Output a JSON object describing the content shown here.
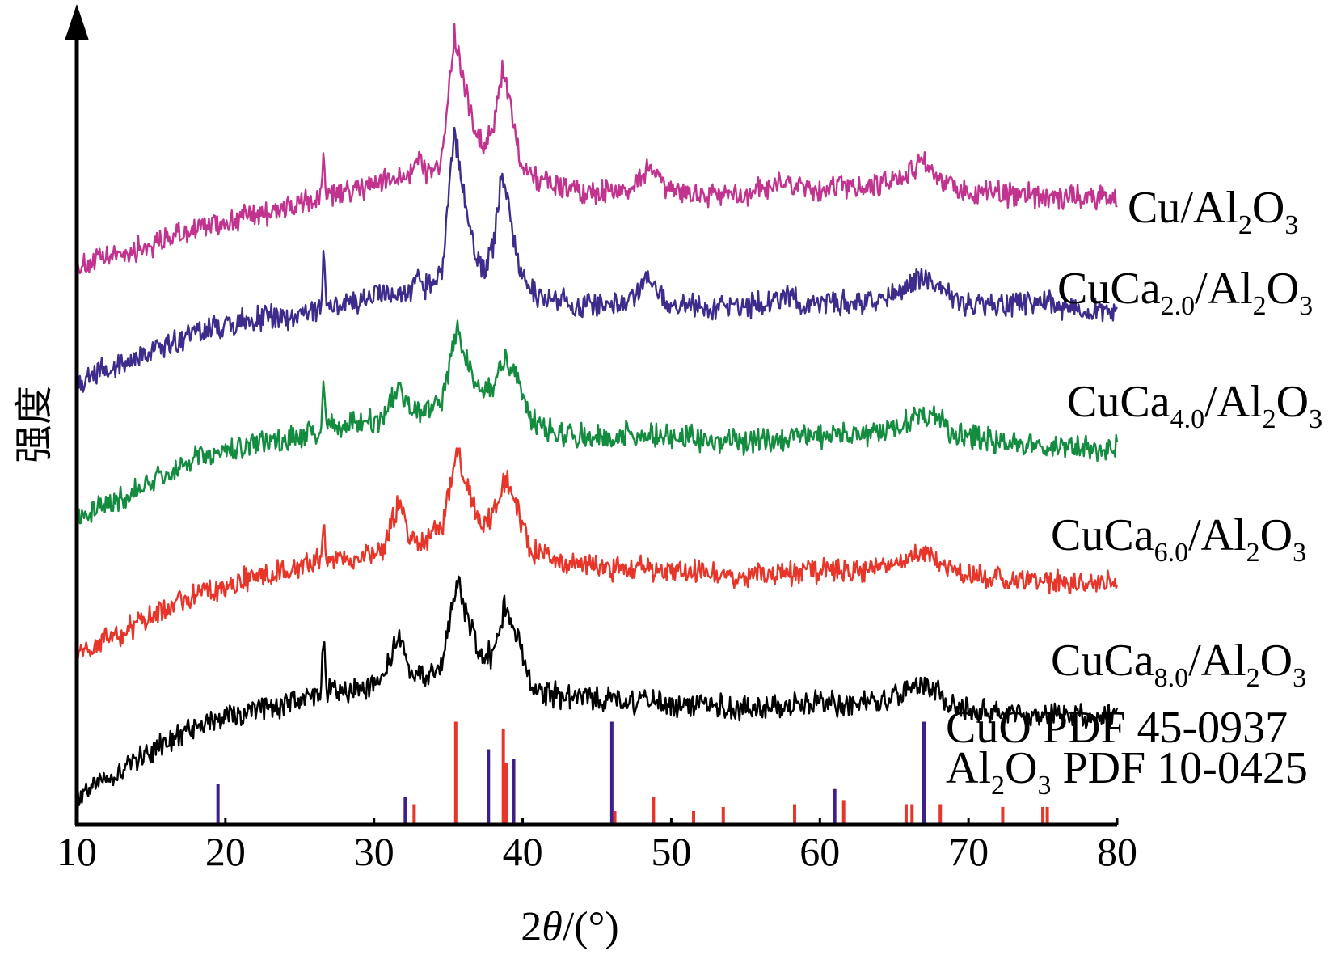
{
  "chart_data": {
    "type": "line",
    "title": "",
    "xlabel_parts": [
      "2",
      "θ",
      "/(°)"
    ],
    "ylabel": "强度",
    "xlim": [
      10,
      80
    ],
    "x_ticks": [
      10,
      20,
      30,
      40,
      50,
      60,
      70,
      80
    ],
    "series": [
      {
        "name": "Cu/Al2O3",
        "label_parts": [
          {
            "t": "Cu/Al"
          },
          {
            "t": "2",
            "sub": true
          },
          {
            "t": "O"
          },
          {
            "t": "3",
            "sub": true
          }
        ],
        "color": "#c1338e",
        "points": [
          [
            10,
            0.0
          ],
          [
            14,
            0.12
          ],
          [
            18,
            0.26
          ],
          [
            22,
            0.36
          ],
          [
            25,
            0.42
          ],
          [
            26.4,
            0.48
          ],
          [
            26.6,
            0.75
          ],
          [
            26.8,
            0.48
          ],
          [
            29,
            0.53
          ],
          [
            31,
            0.6
          ],
          [
            32.5,
            0.66
          ],
          [
            33,
            0.75
          ],
          [
            33.6,
            0.64
          ],
          [
            34.6,
            0.75
          ],
          [
            35.4,
            1.6
          ],
          [
            36,
            1.28
          ],
          [
            36.8,
            0.9
          ],
          [
            37.5,
            0.82
          ],
          [
            38.1,
            1.0
          ],
          [
            38.6,
            1.35
          ],
          [
            39.1,
            1.15
          ],
          [
            39.8,
            0.75
          ],
          [
            41,
            0.6
          ],
          [
            44,
            0.52
          ],
          [
            47,
            0.52
          ],
          [
            48.6,
            0.68
          ],
          [
            49.6,
            0.52
          ],
          [
            52,
            0.5
          ],
          [
            55,
            0.5
          ],
          [
            58,
            0.58
          ],
          [
            59,
            0.52
          ],
          [
            62,
            0.54
          ],
          [
            64,
            0.56
          ],
          [
            66,
            0.66
          ],
          [
            67,
            0.72
          ],
          [
            68,
            0.62
          ],
          [
            69,
            0.52
          ],
          [
            72,
            0.5
          ],
          [
            76,
            0.48
          ],
          [
            80,
            0.48
          ]
        ]
      },
      {
        "name": "CuCa2.0/Al2O3",
        "label_parts": [
          {
            "t": "CuCa"
          },
          {
            "t": "2.0",
            "sub": true
          },
          {
            "t": "/Al"
          },
          {
            "t": "2",
            "sub": true
          },
          {
            "t": "O"
          },
          {
            "t": "3",
            "sub": true
          }
        ],
        "color": "#3f2b8c",
        "points": [
          [
            10,
            0.0
          ],
          [
            14,
            0.15
          ],
          [
            18,
            0.33
          ],
          [
            22,
            0.42
          ],
          [
            25,
            0.45
          ],
          [
            26.4,
            0.48
          ],
          [
            26.6,
            0.85
          ],
          [
            26.8,
            0.5
          ],
          [
            29,
            0.55
          ],
          [
            31,
            0.6
          ],
          [
            32.5,
            0.62
          ],
          [
            33,
            0.75
          ],
          [
            33.6,
            0.62
          ],
          [
            34.6,
            0.75
          ],
          [
            35.4,
            1.72
          ],
          [
            36,
            1.3
          ],
          [
            36.8,
            0.85
          ],
          [
            37.5,
            0.75
          ],
          [
            38.1,
            0.95
          ],
          [
            38.6,
            1.45
          ],
          [
            39.1,
            1.2
          ],
          [
            39.8,
            0.72
          ],
          [
            41,
            0.58
          ],
          [
            44,
            0.52
          ],
          [
            47,
            0.52
          ],
          [
            48.6,
            0.72
          ],
          [
            49.6,
            0.52
          ],
          [
            52,
            0.5
          ],
          [
            55,
            0.5
          ],
          [
            58,
            0.58
          ],
          [
            59,
            0.52
          ],
          [
            62,
            0.53
          ],
          [
            64,
            0.56
          ],
          [
            66,
            0.66
          ],
          [
            67,
            0.7
          ],
          [
            68,
            0.62
          ],
          [
            69,
            0.54
          ],
          [
            72,
            0.5
          ],
          [
            75,
            0.55
          ],
          [
            76,
            0.5
          ],
          [
            80,
            0.48
          ]
        ]
      },
      {
        "name": "CuCa4.0/Al2O3",
        "label_parts": [
          {
            "t": "CuCa"
          },
          {
            "t": "4.0",
            "sub": true
          },
          {
            "t": "/Al"
          },
          {
            "t": "2",
            "sub": true
          },
          {
            "t": "O"
          },
          {
            "t": "3",
            "sub": true
          }
        ],
        "color": "#138c3f",
        "points": [
          [
            10,
            0.0
          ],
          [
            14,
            0.18
          ],
          [
            18,
            0.4
          ],
          [
            22,
            0.5
          ],
          [
            25,
            0.55
          ],
          [
            26.4,
            0.6
          ],
          [
            26.6,
            0.88
          ],
          [
            26.8,
            0.62
          ],
          [
            29,
            0.64
          ],
          [
            30.5,
            0.68
          ],
          [
            31.6,
            0.9
          ],
          [
            32.4,
            0.72
          ],
          [
            33.5,
            0.72
          ],
          [
            34.6,
            0.82
          ],
          [
            35.6,
            1.3
          ],
          [
            36.3,
            1.08
          ],
          [
            37.2,
            0.85
          ],
          [
            38,
            0.88
          ],
          [
            38.8,
            1.12
          ],
          [
            39.6,
            0.95
          ],
          [
            40.6,
            0.66
          ],
          [
            42,
            0.58
          ],
          [
            45,
            0.56
          ],
          [
            48,
            0.58
          ],
          [
            50,
            0.56
          ],
          [
            55,
            0.52
          ],
          [
            58,
            0.55
          ],
          [
            60,
            0.56
          ],
          [
            63,
            0.58
          ],
          [
            65,
            0.62
          ],
          [
            67,
            0.7
          ],
          [
            68,
            0.68
          ],
          [
            69,
            0.56
          ],
          [
            72,
            0.52
          ],
          [
            76,
            0.5
          ],
          [
            80,
            0.48
          ]
        ]
      },
      {
        "name": "CuCa6.0/Al2O3",
        "label_parts": [
          {
            "t": "CuCa"
          },
          {
            "t": "6.0",
            "sub": true
          },
          {
            "t": "/Al"
          },
          {
            "t": "2",
            "sub": true
          },
          {
            "t": "O"
          },
          {
            "t": "3",
            "sub": true
          }
        ],
        "color": "#e8352a",
        "points": [
          [
            10,
            0.0
          ],
          [
            14,
            0.2
          ],
          [
            18,
            0.42
          ],
          [
            22,
            0.54
          ],
          [
            25,
            0.6
          ],
          [
            26.4,
            0.64
          ],
          [
            26.6,
            0.95
          ],
          [
            26.8,
            0.65
          ],
          [
            29,
            0.68
          ],
          [
            30.5,
            0.72
          ],
          [
            31.7,
            1.05
          ],
          [
            32.4,
            0.8
          ],
          [
            33.5,
            0.78
          ],
          [
            34.6,
            0.9
          ],
          [
            35.6,
            1.4
          ],
          [
            36.3,
            1.15
          ],
          [
            37.2,
            0.9
          ],
          [
            38,
            0.92
          ],
          [
            38.8,
            1.22
          ],
          [
            39.6,
            1.02
          ],
          [
            40.6,
            0.72
          ],
          [
            42,
            0.64
          ],
          [
            45,
            0.6
          ],
          [
            48,
            0.6
          ],
          [
            50,
            0.58
          ],
          [
            55,
            0.55
          ],
          [
            58,
            0.56
          ],
          [
            60,
            0.58
          ],
          [
            63,
            0.58
          ],
          [
            65,
            0.62
          ],
          [
            67,
            0.72
          ],
          [
            68,
            0.66
          ],
          [
            69,
            0.58
          ],
          [
            72,
            0.52
          ],
          [
            76,
            0.5
          ],
          [
            80,
            0.5
          ]
        ]
      },
      {
        "name": "CuCa8.0/Al2O3",
        "label_parts": [
          {
            "t": "CuCa"
          },
          {
            "t": "8.0",
            "sub": true
          },
          {
            "t": "/Al"
          },
          {
            "t": "2",
            "sub": true
          },
          {
            "t": "O"
          },
          {
            "t": "3",
            "sub": true
          }
        ],
        "color": "#000000",
        "points": [
          [
            10,
            0.0
          ],
          [
            14,
            0.25
          ],
          [
            18,
            0.48
          ],
          [
            22,
            0.6
          ],
          [
            25,
            0.65
          ],
          [
            26.4,
            0.7
          ],
          [
            26.6,
            1.1
          ],
          [
            26.8,
            0.72
          ],
          [
            29,
            0.74
          ],
          [
            30.5,
            0.78
          ],
          [
            31.7,
            1.12
          ],
          [
            32.4,
            0.88
          ],
          [
            33.5,
            0.82
          ],
          [
            34.6,
            0.95
          ],
          [
            35.6,
            1.5
          ],
          [
            36.3,
            1.22
          ],
          [
            37.2,
            0.95
          ],
          [
            38,
            0.98
          ],
          [
            38.8,
            1.32
          ],
          [
            39.6,
            1.1
          ],
          [
            40.6,
            0.78
          ],
          [
            42,
            0.7
          ],
          [
            45,
            0.66
          ],
          [
            48,
            0.66
          ],
          [
            50,
            0.64
          ],
          [
            55,
            0.6
          ],
          [
            58,
            0.62
          ],
          [
            60,
            0.64
          ],
          [
            63,
            0.64
          ],
          [
            65,
            0.68
          ],
          [
            67,
            0.78
          ],
          [
            68,
            0.72
          ],
          [
            69,
            0.62
          ],
          [
            72,
            0.58
          ],
          [
            76,
            0.56
          ],
          [
            80,
            0.55
          ]
        ]
      }
    ],
    "reference_patterns": [
      {
        "name": "CuO PDF 45-0937",
        "label_parts": [
          {
            "t": "CuO PDF 45-0937"
          }
        ],
        "color": "#3f1f8c",
        "lines": [
          [
            19.5,
            0.3
          ],
          [
            32.1,
            0.2
          ],
          [
            37.7,
            0.55
          ],
          [
            39.4,
            0.48
          ],
          [
            46.0,
            0.75
          ],
          [
            61.0,
            0.26
          ],
          [
            67.0,
            0.75
          ]
        ]
      },
      {
        "name": "Al2O3 PDF 10-0425",
        "label_parts": [
          {
            "t": "Al"
          },
          {
            "t": "2",
            "sub": true
          },
          {
            "t": "O"
          },
          {
            "t": "3",
            "sub": true
          },
          {
            "t": " PDF 10-0425"
          }
        ],
        "color": "#e8352a",
        "lines": [
          [
            32.7,
            0.15
          ],
          [
            35.5,
            0.75
          ],
          [
            38.7,
            0.7
          ],
          [
            38.9,
            0.45
          ],
          [
            46.2,
            0.1
          ],
          [
            48.8,
            0.2
          ],
          [
            51.5,
            0.1
          ],
          [
            53.5,
            0.13
          ],
          [
            58.3,
            0.15
          ],
          [
            61.6,
            0.18
          ],
          [
            65.8,
            0.15
          ],
          [
            66.2,
            0.15
          ],
          [
            68.1,
            0.15
          ],
          [
            72.3,
            0.13
          ],
          [
            75.0,
            0.13
          ],
          [
            75.3,
            0.13
          ]
        ]
      }
    ],
    "grid": false,
    "legend": "labels at right end of each trace"
  }
}
